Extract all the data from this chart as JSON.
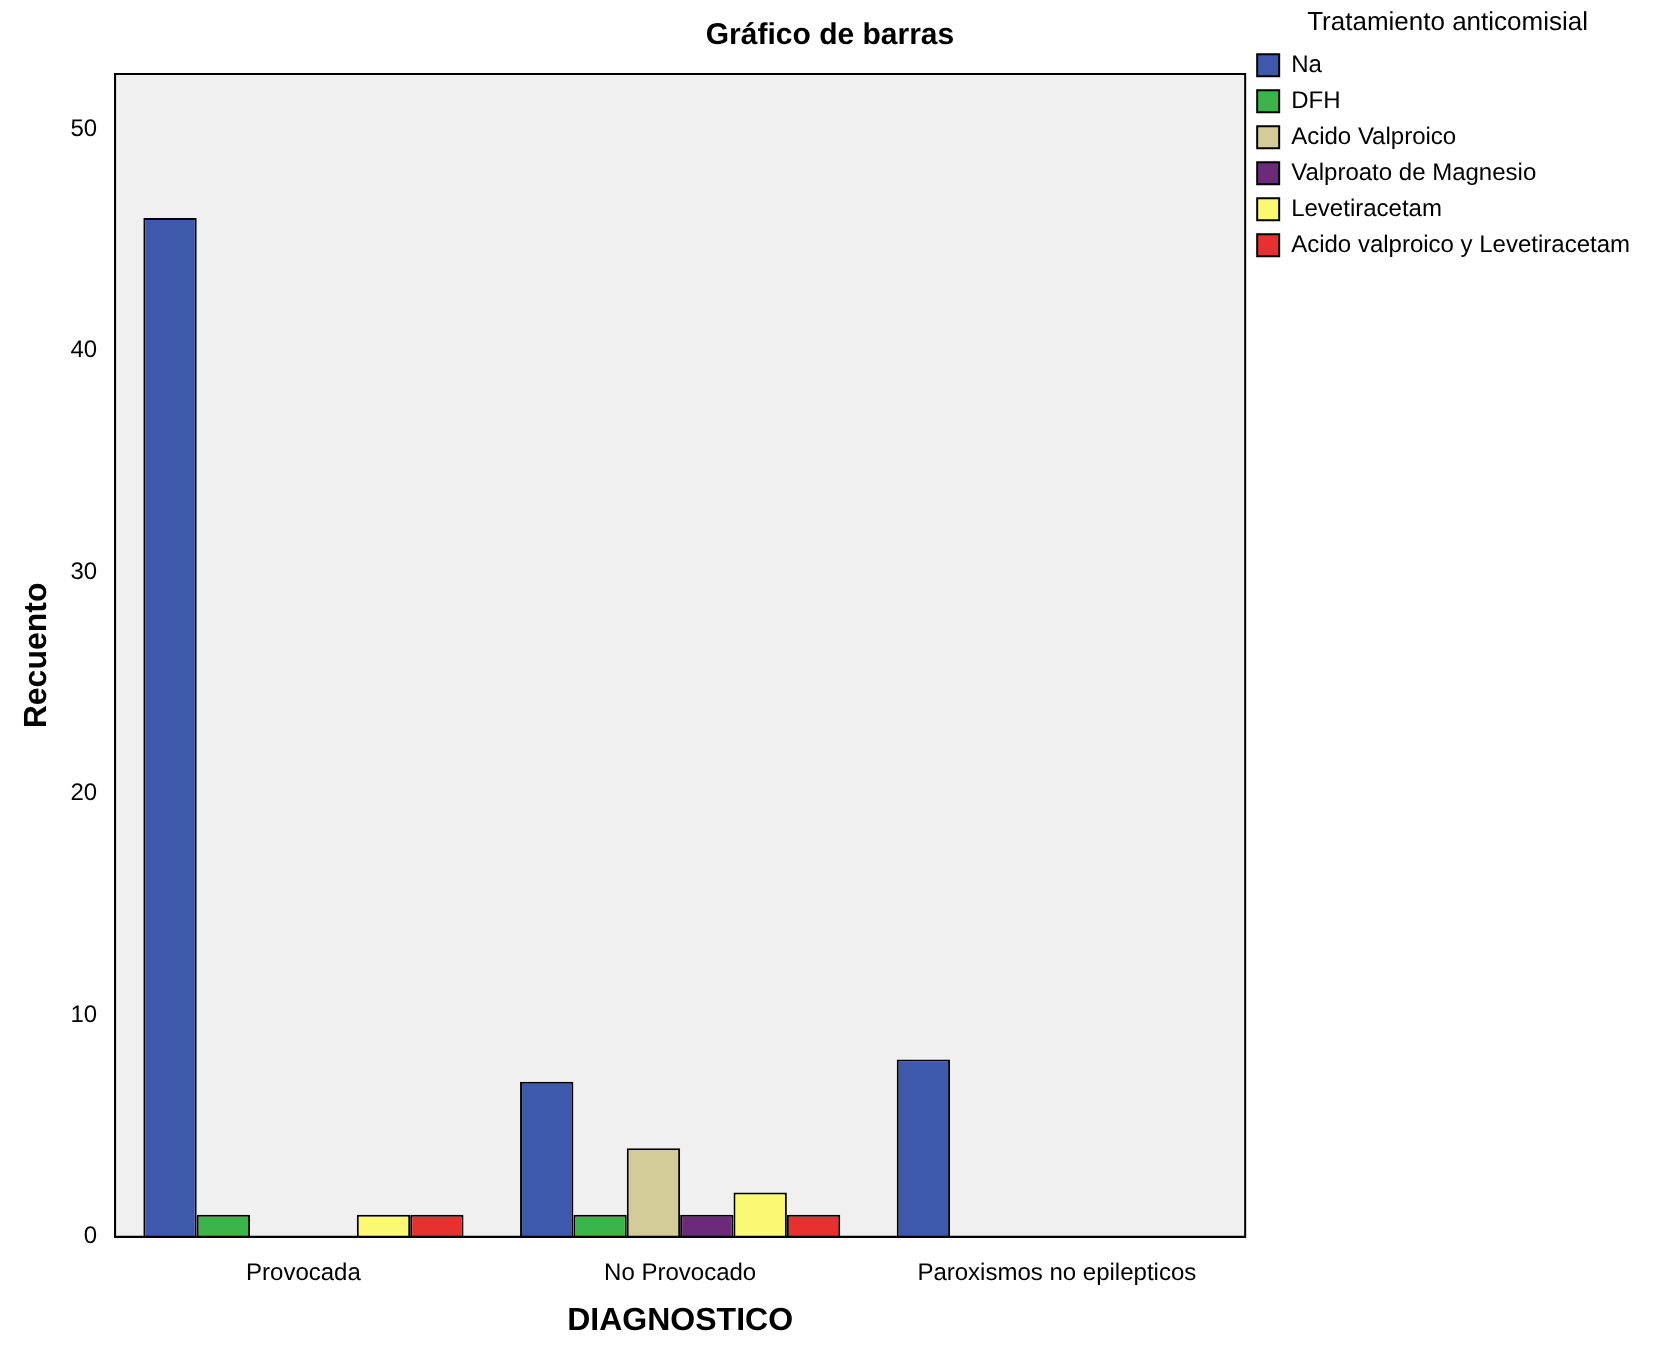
{
  "chart_data": {
    "type": "bar",
    "title": "Gráfico de barras",
    "xlabel": "DIAGNOSTICO",
    "ylabel": "Recuento",
    "legend_title": "Tratamiento anticomisial",
    "legend": "top right",
    "grid": false,
    "categories": [
      "Provocada",
      "No Provocado",
      "Paroxismos no epilepticos"
    ],
    "ylim": [
      0,
      52.5
    ],
    "yticks": [
      0,
      10,
      20,
      30,
      40,
      50
    ],
    "series": [
      {
        "name": "Na",
        "color": "#3e58ac",
        "values": [
          46,
          7,
          8
        ]
      },
      {
        "name": "DFH",
        "color": "#3bb44a",
        "values": [
          1,
          1,
          null
        ]
      },
      {
        "name": "Acido Valproico",
        "color": "#d4cc98",
        "values": [
          null,
          4,
          null
        ]
      },
      {
        "name": "Valproato de Magnesio",
        "color": "#6b2a7a",
        "values": [
          null,
          1,
          null
        ]
      },
      {
        "name": "Levetiracetam",
        "color": "#fbf873",
        "values": [
          1,
          2,
          null
        ]
      },
      {
        "name": "Acido valproico y Levetiracetam",
        "color": "#e8302f",
        "values": [
          1,
          1,
          null
        ]
      }
    ]
  }
}
